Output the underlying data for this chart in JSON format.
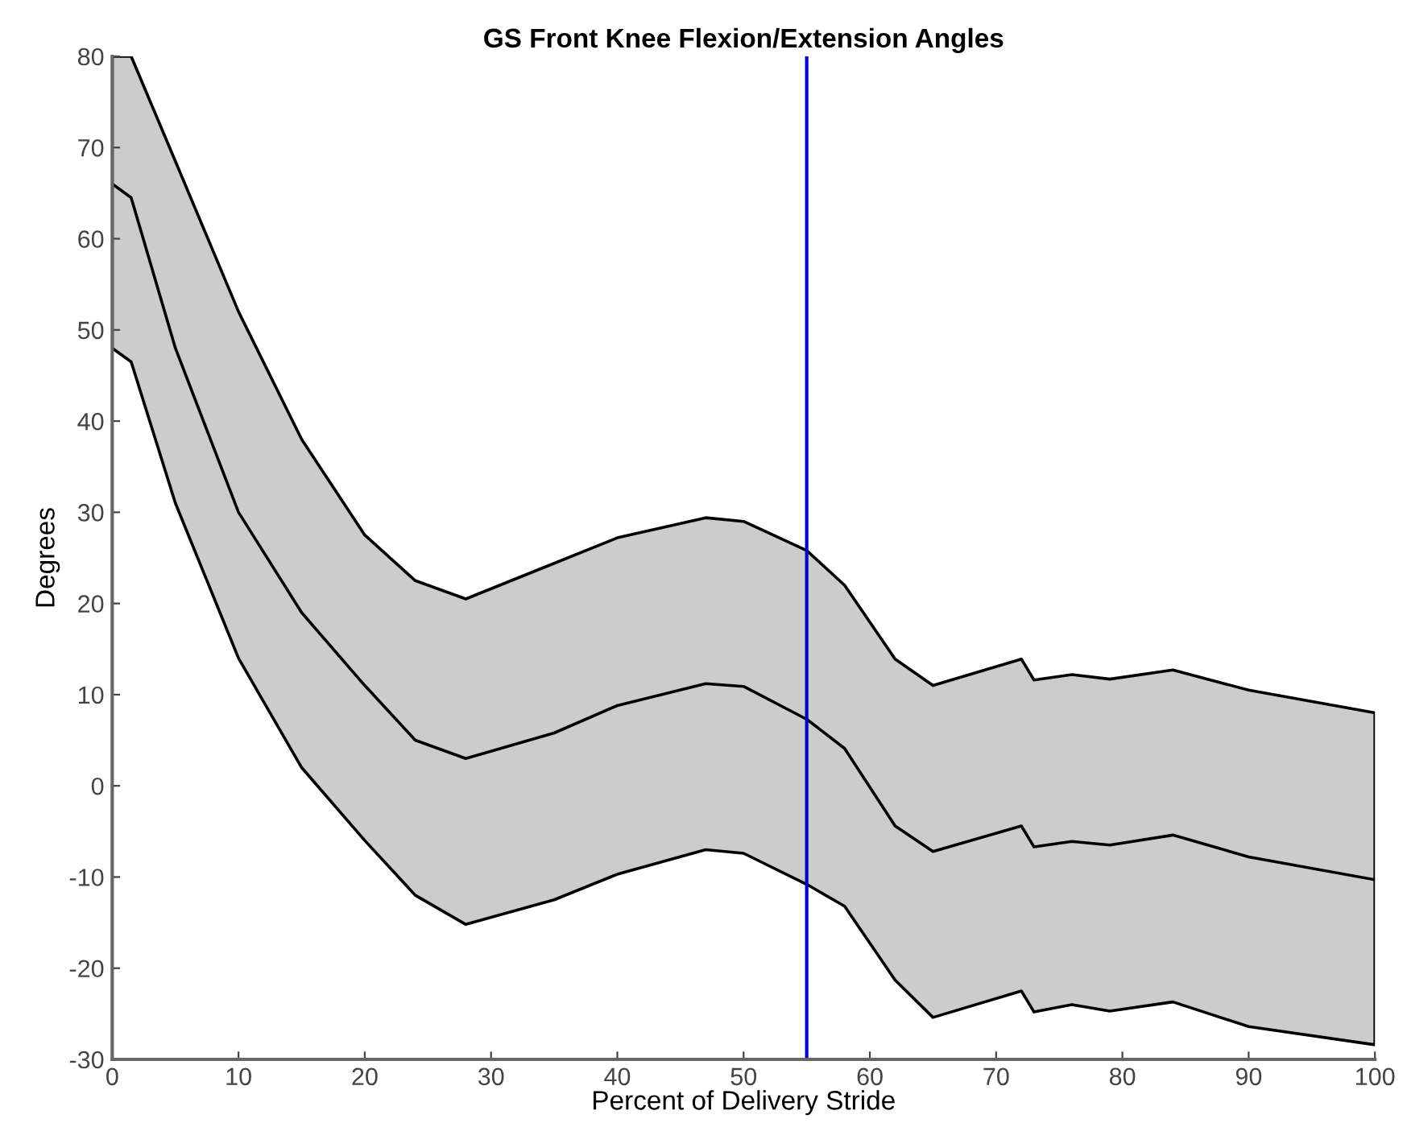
{
  "chart_data": {
    "type": "line",
    "title": "GS Front Knee Flexion/Extension Angles",
    "xlabel": "Percent of Delivery Stride",
    "ylabel": "Degrees",
    "x": [
      0,
      1.5,
      5,
      10,
      15,
      20,
      24,
      28,
      35,
      40,
      47,
      50,
      55,
      58,
      62,
      65,
      72,
      73,
      76,
      79,
      84,
      90,
      100
    ],
    "series": [
      {
        "color": "#000000",
        "values": [
          66,
          64.5,
          48,
          30,
          19,
          11,
          5,
          3,
          5.8,
          8.8,
          11.2,
          10.9,
          7.3,
          4.1,
          -4.4,
          -7.2,
          -4.4,
          -6.7,
          -6.1,
          -6.5,
          -5.4,
          -7.8,
          -10.3
        ],
        "lower": [
          48,
          46.5,
          31,
          14,
          2,
          -6,
          -12,
          -15.2,
          -12.5,
          -9.7,
          -7,
          -7.4,
          -10.8,
          -13.2,
          -21.3,
          -25.4,
          -22.5,
          -24.8,
          -24,
          -24.7,
          -23.7,
          -26.4,
          -28.4
        ],
        "upper": [
          80,
          80,
          68.5,
          52,
          38,
          27.5,
          22.5,
          20.5,
          24.4,
          27.2,
          29.4,
          29,
          25.8,
          22,
          13.9,
          11,
          13.9,
          11.6,
          12.2,
          11.7,
          12.7,
          10.5,
          8
        ]
      }
    ],
    "xlim": [
      0,
      100
    ],
    "ylim": [
      -30,
      80
    ],
    "xticks": [
      0,
      10,
      20,
      30,
      40,
      50,
      60,
      70,
      80,
      90,
      100
    ],
    "yticks": [
      -30,
      -20,
      -10,
      0,
      10,
      20,
      30,
      40,
      50,
      60,
      70,
      80
    ],
    "ref_lines": [
      {
        "axis": "x",
        "value": 55,
        "color": "#0000cc"
      }
    ],
    "grid": false,
    "legend": false
  }
}
